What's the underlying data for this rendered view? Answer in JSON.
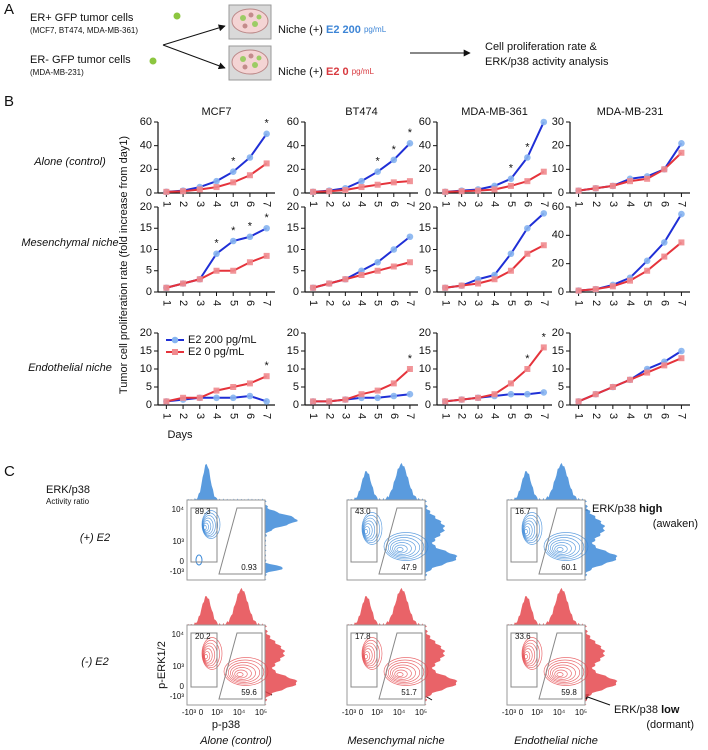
{
  "panel_a": {
    "label": "A",
    "er_pos": "ER+ GFP tumor cells",
    "er_pos_lines": "(MCF7, BT474, MDA-MB-361)",
    "er_neg": "ER- GFP tumor cells",
    "er_neg_lines": "(MDA-MB-231)",
    "niches": [
      {
        "prefix": "Niche (+)",
        "dose": "E2 200",
        "unit": "pg/mL",
        "color": "#3d85d6"
      },
      {
        "prefix": "Niche (+)",
        "dose": "E2 0",
        "unit": "pg/mL",
        "color": "#d8393f"
      }
    ],
    "readout": [
      "Cell proliferation rate &",
      "ERK/p38 activity analysis"
    ]
  },
  "panel_b": {
    "label": "B",
    "y_label": "Tumor cell proliferation rate (fold increase from day1)",
    "x_label": "Days",
    "row_labels": [
      "Alone (control)",
      "Mesenchymal niche",
      "Endothelial niche"
    ],
    "significance_mark": "*"
  },
  "chart_data": [
    {
      "type": "line",
      "title": "MCF7",
      "x": [
        1,
        2,
        3,
        4,
        5,
        6,
        7
      ],
      "xlim": [
        0.5,
        7.5
      ],
      "xticks": [
        1,
        2,
        3,
        4,
        5,
        6,
        7
      ],
      "ylim": [
        0,
        60
      ],
      "yticks": [
        0,
        20,
        40,
        60
      ],
      "series": [
        {
          "color": "#1f2fd6",
          "marker_color": "#86b4f0",
          "marker": "circle",
          "values": [
            1,
            2,
            5,
            10,
            18,
            30,
            50
          ]
        },
        {
          "color": "#e5333b",
          "marker_color": "#f08a8e",
          "marker": "square",
          "values": [
            1,
            1.5,
            3,
            5,
            9,
            15,
            25
          ]
        }
      ],
      "significant_days": [
        5,
        7
      ]
    },
    {
      "type": "line",
      "title": "BT474",
      "x": [
        1,
        2,
        3,
        4,
        5,
        6,
        7
      ],
      "xlim": [
        0.5,
        7.5
      ],
      "xticks": [
        1,
        2,
        3,
        4,
        5,
        6,
        7
      ],
      "ylim": [
        0,
        60
      ],
      "yticks": [
        0,
        20,
        40,
        60
      ],
      "series": [
        {
          "color": "#1f2fd6",
          "marker_color": "#86b4f0",
          "marker": "circle",
          "values": [
            1,
            2,
            4,
            10,
            18,
            28,
            42
          ]
        },
        {
          "color": "#e5333b",
          "marker_color": "#f08a8e",
          "marker": "square",
          "values": [
            1,
            1.5,
            2.5,
            5,
            7,
            9,
            10
          ]
        }
      ],
      "significant_days": [
        5,
        6,
        7
      ]
    },
    {
      "type": "line",
      "title": "MDA-MB-361",
      "x": [
        1,
        2,
        3,
        4,
        5,
        6,
        7
      ],
      "xlim": [
        0.5,
        7.5
      ],
      "xticks": [
        1,
        2,
        3,
        4,
        5,
        6,
        7
      ],
      "ylim": [
        0,
        60
      ],
      "yticks": [
        0,
        20,
        40,
        60
      ],
      "series": [
        {
          "color": "#1f2fd6",
          "marker_color": "#86b4f0",
          "marker": "circle",
          "values": [
            1,
            2,
            3,
            6,
            12,
            30,
            60
          ]
        },
        {
          "color": "#e5333b",
          "marker_color": "#f08a8e",
          "marker": "square",
          "values": [
            1,
            1.5,
            2,
            3,
            6,
            10,
            18
          ]
        }
      ],
      "significant_days": [
        5,
        6
      ]
    },
    {
      "type": "line",
      "title": "MDA-MB-231",
      "x": [
        1,
        2,
        3,
        4,
        5,
        6,
        7
      ],
      "xlim": [
        0.5,
        7.5
      ],
      "xticks": [
        1,
        2,
        3,
        4,
        5,
        6,
        7
      ],
      "ylim": [
        0,
        30
      ],
      "yticks": [
        0,
        10,
        20,
        30
      ],
      "series": [
        {
          "color": "#1f2fd6",
          "marker_color": "#86b4f0",
          "marker": "circle",
          "values": [
            1,
            2,
            3,
            6,
            7,
            10,
            21
          ]
        },
        {
          "color": "#e5333b",
          "marker_color": "#f08a8e",
          "marker": "square",
          "values": [
            1,
            2,
            3,
            5,
            6,
            10,
            17
          ]
        }
      ]
    },
    {
      "type": "line",
      "x": [
        1,
        2,
        3,
        4,
        5,
        6,
        7
      ],
      "xlim": [
        0.5,
        7.5
      ],
      "xticks": [
        1,
        2,
        3,
        4,
        5,
        6,
        7
      ],
      "ylim": [
        0,
        20
      ],
      "yticks": [
        0,
        5,
        10,
        15,
        20
      ],
      "series": [
        {
          "color": "#1f2fd6",
          "marker_color": "#86b4f0",
          "marker": "circle",
          "values": [
            1,
            2,
            3,
            9,
            12,
            13,
            15
          ]
        },
        {
          "color": "#e5333b",
          "marker_color": "#f08a8e",
          "marker": "square",
          "values": [
            1,
            2,
            3,
            5,
            5,
            7,
            8.5
          ]
        }
      ],
      "significant_days": [
        4,
        5,
        6,
        7
      ]
    },
    {
      "type": "line",
      "x": [
        1,
        2,
        3,
        4,
        5,
        6,
        7
      ],
      "xlim": [
        0.5,
        7.5
      ],
      "xticks": [
        1,
        2,
        3,
        4,
        5,
        6,
        7
      ],
      "ylim": [
        0,
        20
      ],
      "yticks": [
        0,
        5,
        10,
        15,
        20
      ],
      "series": [
        {
          "color": "#1f2fd6",
          "marker_color": "#86b4f0",
          "marker": "circle",
          "values": [
            1,
            2,
            3,
            5,
            7,
            10,
            13
          ]
        },
        {
          "color": "#e5333b",
          "marker_color": "#f08a8e",
          "marker": "square",
          "values": [
            1,
            2,
            3,
            4,
            5,
            6,
            7
          ]
        }
      ]
    },
    {
      "type": "line",
      "x": [
        1,
        2,
        3,
        4,
        5,
        6,
        7
      ],
      "xlim": [
        0.5,
        7.5
      ],
      "xticks": [
        1,
        2,
        3,
        4,
        5,
        6,
        7
      ],
      "ylim": [
        0,
        20
      ],
      "yticks": [
        0,
        5,
        10,
        15,
        20
      ],
      "series": [
        {
          "color": "#1f2fd6",
          "marker_color": "#86b4f0",
          "marker": "circle",
          "values": [
            1,
            1.5,
            3,
            4,
            9,
            15,
            18.5
          ]
        },
        {
          "color": "#e5333b",
          "marker_color": "#f08a8e",
          "marker": "square",
          "values": [
            1,
            1.5,
            2,
            3,
            5,
            9,
            11
          ]
        }
      ]
    },
    {
      "type": "line",
      "x": [
        1,
        2,
        3,
        4,
        5,
        6,
        7
      ],
      "xlim": [
        0.5,
        7.5
      ],
      "xticks": [
        1,
        2,
        3,
        4,
        5,
        6,
        7
      ],
      "ylim": [
        0,
        60
      ],
      "yticks": [
        0,
        20,
        40,
        60
      ],
      "series": [
        {
          "color": "#1f2fd6",
          "marker_color": "#86b4f0",
          "marker": "circle",
          "values": [
            1,
            2,
            5,
            10,
            22,
            35,
            55
          ]
        },
        {
          "color": "#e5333b",
          "marker_color": "#f08a8e",
          "marker": "square",
          "values": [
            1,
            2,
            4,
            8,
            15,
            25,
            35
          ]
        }
      ]
    },
    {
      "type": "line",
      "x": [
        1,
        2,
        3,
        4,
        5,
        6,
        7
      ],
      "xlim": [
        0.5,
        7.5
      ],
      "xticks": [
        1,
        2,
        3,
        4,
        5,
        6,
        7
      ],
      "ylim": [
        0,
        20
      ],
      "yticks": [
        0,
        5,
        10,
        15,
        20
      ],
      "series": [
        {
          "name": "E2 200 pg/mL",
          "color": "#1f2fd6",
          "marker_color": "#86b4f0",
          "marker": "circle",
          "values": [
            1,
            1.5,
            2,
            2,
            2,
            2.5,
            1
          ]
        },
        {
          "name": "E2 0 pg/mL",
          "color": "#e5333b",
          "marker_color": "#f08a8e",
          "marker": "square",
          "values": [
            1,
            2,
            2,
            4,
            5,
            6,
            8
          ]
        }
      ],
      "significant_days": [
        7
      ]
    },
    {
      "type": "line",
      "x": [
        1,
        2,
        3,
        4,
        5,
        6,
        7
      ],
      "xlim": [
        0.5,
        7.5
      ],
      "xticks": [
        1,
        2,
        3,
        4,
        5,
        6,
        7
      ],
      "ylim": [
        0,
        20
      ],
      "yticks": [
        0,
        5,
        10,
        15,
        20
      ],
      "series": [
        {
          "color": "#1f2fd6",
          "marker_color": "#86b4f0",
          "marker": "circle",
          "values": [
            1,
            1,
            1.5,
            2,
            2,
            2.5,
            3
          ]
        },
        {
          "color": "#e5333b",
          "marker_color": "#f08a8e",
          "marker": "square",
          "values": [
            1,
            1,
            1.5,
            3,
            4,
            6,
            10
          ]
        }
      ],
      "significant_days": [
        7
      ]
    },
    {
      "type": "line",
      "x": [
        1,
        2,
        3,
        4,
        5,
        6,
        7
      ],
      "xlim": [
        0.5,
        7.5
      ],
      "xticks": [
        1,
        2,
        3,
        4,
        5,
        6,
        7
      ],
      "ylim": [
        0,
        20
      ],
      "yticks": [
        0,
        5,
        10,
        15,
        20
      ],
      "series": [
        {
          "color": "#1f2fd6",
          "marker_color": "#86b4f0",
          "marker": "circle",
          "values": [
            1,
            1.5,
            2,
            2.5,
            3,
            3,
            3.5
          ]
        },
        {
          "color": "#e5333b",
          "marker_color": "#f08a8e",
          "marker": "square",
          "values": [
            1,
            1.5,
            2,
            3,
            6,
            10,
            16
          ]
        }
      ],
      "significant_days": [
        6,
        7
      ]
    },
    {
      "type": "line",
      "x": [
        1,
        2,
        3,
        4,
        5,
        6,
        7
      ],
      "xlim": [
        0.5,
        7.5
      ],
      "xticks": [
        1,
        2,
        3,
        4,
        5,
        6,
        7
      ],
      "ylim": [
        0,
        20
      ],
      "yticks": [
        0,
        5,
        10,
        15,
        20
      ],
      "series": [
        {
          "color": "#1f2fd6",
          "marker_color": "#86b4f0",
          "marker": "circle",
          "values": [
            1,
            3,
            5,
            7,
            10,
            12,
            15
          ]
        },
        {
          "color": "#e5333b",
          "marker_color": "#f08a8e",
          "marker": "square",
          "values": [
            1,
            3,
            5,
            7,
            9,
            11,
            13
          ]
        }
      ]
    }
  ],
  "panel_c": {
    "label": "C",
    "legend_title": "ERK/p38",
    "legend_subtitle": "Activity ratio",
    "rows": [
      "(+) E2",
      "(-) E2"
    ],
    "row_colors": [
      "#3d8ad8",
      "#e5484e"
    ],
    "columns": [
      "Alone (control)",
      "Mesenchymal niche",
      "Endothelial niche"
    ],
    "y_label": "p-ERK1/2",
    "x_label": "p-p38",
    "y_ticks": [
      "10⁴",
      "10³",
      "0",
      "-10³"
    ],
    "x_ticks": [
      "-10³",
      "0",
      "10³",
      "10⁴",
      "10⁵"
    ],
    "gates": [
      [
        [
          "89.3",
          "0.93"
        ],
        [
          "43.0",
          "47.9"
        ],
        [
          "16.7",
          "60.1"
        ]
      ],
      [
        [
          "20.2",
          "59.6"
        ],
        [
          "17.8",
          "51.7"
        ],
        [
          "33.6",
          "59.8"
        ]
      ]
    ],
    "callouts": [
      {
        "text": "ERK/p38",
        "emphasis": "high",
        "note": "(awaken)"
      },
      {
        "text": "ERK/p38",
        "emphasis": "low",
        "note": "(dormant)"
      }
    ]
  }
}
